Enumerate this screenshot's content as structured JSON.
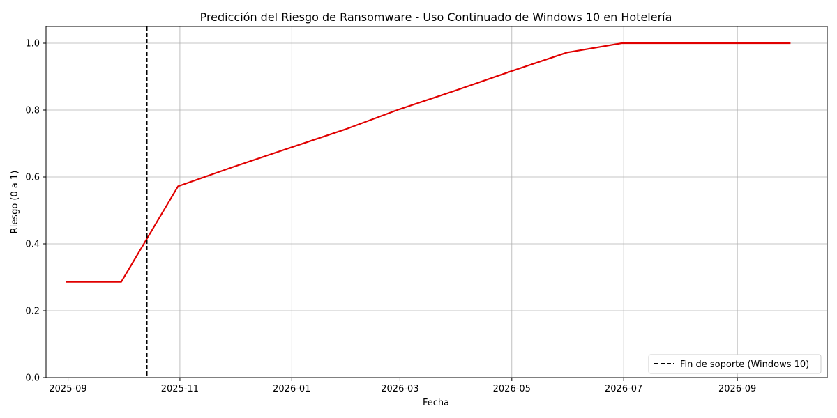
{
  "chart_data": {
    "type": "line",
    "title": "Predicción del Riesgo de Ransomware - Uso Continuado de Windows 10 en Hotelería",
    "xlabel": "Fecha",
    "ylabel": "Riesgo (0 a 1)",
    "xlim": [
      "2025-08-20",
      "2026-10-20"
    ],
    "ylim": [
      0.0,
      1.05
    ],
    "x_ticks": [
      "2025-09",
      "2025-11",
      "2026-01",
      "2026-03",
      "2026-05",
      "2026-07",
      "2026-09"
    ],
    "y_ticks": [
      "0.0",
      "0.2",
      "0.4",
      "0.6",
      "0.8",
      "1.0"
    ],
    "grid": true,
    "legend_position": "bottom-right",
    "series": [
      {
        "color": "#e00000",
        "x": [
          "2025-08-31",
          "2025-09-30",
          "2025-10-31",
          "2025-11-30",
          "2025-12-31",
          "2026-01-31",
          "2026-02-28",
          "2026-03-31",
          "2026-04-30",
          "2026-05-31",
          "2026-06-30",
          "2026-07-31",
          "2026-08-31",
          "2026-09-30"
        ],
        "values": [
          0.286,
          0.286,
          0.572,
          0.63,
          0.687,
          0.744,
          0.801,
          0.858,
          0.915,
          0.972,
          1.0,
          1.0,
          1.0,
          1.0
        ]
      }
    ],
    "reference_line": {
      "x": "2025-10-14",
      "label": "Fin de soporte (Windows 10)",
      "color": "#000000",
      "style": "dashed"
    }
  }
}
